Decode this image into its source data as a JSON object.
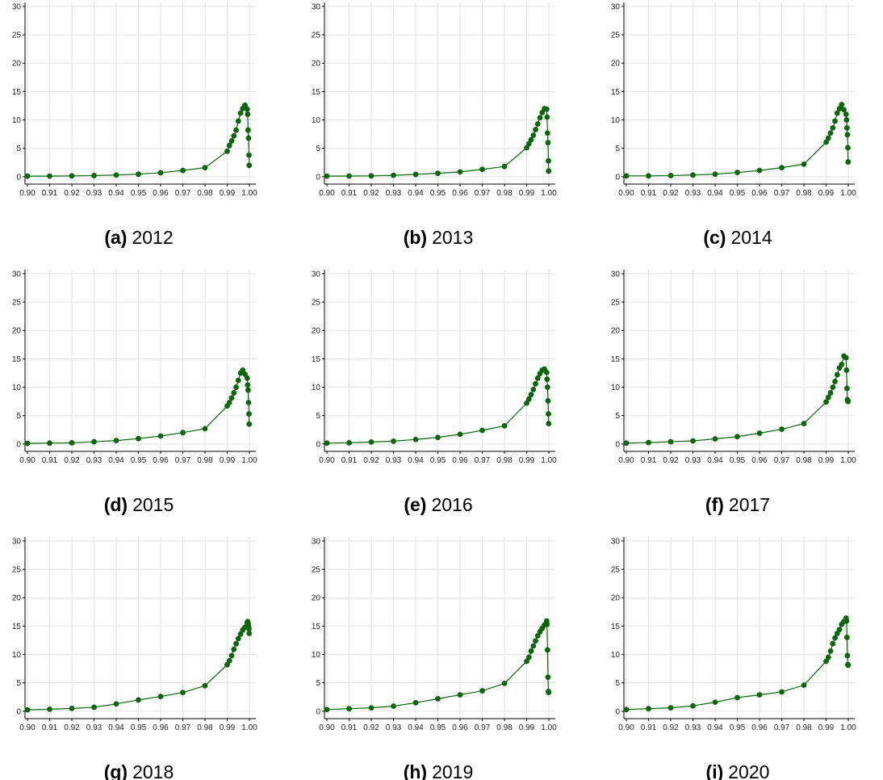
{
  "chart_data": [
    {
      "type": "line",
      "label": "(a)",
      "title": "2012",
      "color": "#0b660b",
      "grid": true,
      "x": [
        0.9,
        0.91,
        0.92,
        0.93,
        0.94,
        0.95,
        0.96,
        0.97,
        0.98,
        0.99,
        0.991,
        0.992,
        0.993,
        0.994,
        0.995,
        0.996,
        0.997,
        0.998,
        0.999,
        0.9992,
        0.9994,
        0.9996,
        0.9998,
        0.9999
      ],
      "values": [
        0.1,
        0.1,
        0.15,
        0.2,
        0.3,
        0.45,
        0.7,
        1.1,
        1.6,
        4.5,
        5.5,
        6.3,
        7.2,
        8.2,
        9.8,
        11.2,
        12.0,
        12.6,
        11.9,
        11.0,
        8.2,
        6.8,
        3.8,
        2.0
      ],
      "xlim": [
        0.8989,
        1.0029
      ],
      "ylim": [
        -1.3,
        30.7
      ],
      "xticks": [
        {
          "value": 0.9,
          "label": "0.90"
        },
        {
          "value": 0.91,
          "label": "0.91"
        },
        {
          "value": 0.92,
          "label": "0.92"
        },
        {
          "value": 0.93,
          "label": "0.93"
        },
        {
          "value": 0.94,
          "label": "0.94"
        },
        {
          "value": 0.95,
          "label": "0.95"
        },
        {
          "value": 0.96,
          "label": "0.96"
        },
        {
          "value": 0.97,
          "label": "0.97"
        },
        {
          "value": 0.98,
          "label": "0.98"
        },
        {
          "value": 0.99,
          "label": "0.99"
        },
        {
          "value": 1.0,
          "label": "1.00"
        }
      ],
      "yticks": [
        0,
        5,
        10,
        15,
        20,
        25,
        30
      ]
    },
    {
      "type": "line",
      "label": "(b)",
      "title": "2013",
      "color": "#0b660b",
      "grid": true,
      "x": [
        0.9,
        0.91,
        0.92,
        0.93,
        0.94,
        0.95,
        0.96,
        0.97,
        0.98,
        0.99,
        0.991,
        0.992,
        0.993,
        0.994,
        0.995,
        0.996,
        0.997,
        0.998,
        0.999,
        0.9992,
        0.9994,
        0.9996,
        0.9998,
        0.9999
      ],
      "values": [
        0.1,
        0.12,
        0.15,
        0.25,
        0.4,
        0.6,
        0.85,
        1.3,
        1.8,
        5.1,
        5.8,
        6.5,
        7.3,
        8.3,
        9.3,
        10.4,
        11.3,
        12.0,
        11.9,
        10.5,
        7.7,
        6.0,
        2.8,
        1.0
      ],
      "xlim": [
        0.8989,
        1.0029
      ],
      "ylim": [
        -1.3,
        30.7
      ],
      "xticks": [
        {
          "value": 0.9,
          "label": "0.90"
        },
        {
          "value": 0.91,
          "label": "0.91"
        },
        {
          "value": 0.92,
          "label": "0.92"
        },
        {
          "value": 0.93,
          "label": "0.93"
        },
        {
          "value": 0.94,
          "label": "0.94"
        },
        {
          "value": 0.95,
          "label": "0.95"
        },
        {
          "value": 0.96,
          "label": "0.96"
        },
        {
          "value": 0.97,
          "label": "0.97"
        },
        {
          "value": 0.98,
          "label": "0.98"
        },
        {
          "value": 0.99,
          "label": "0.99"
        },
        {
          "value": 1.0,
          "label": "1.00"
        }
      ],
      "yticks": [
        0,
        5,
        10,
        15,
        20,
        25,
        30
      ]
    },
    {
      "type": "line",
      "label": "(c)",
      "title": "2014",
      "color": "#0b660b",
      "grid": true,
      "x": [
        0.9,
        0.91,
        0.92,
        0.93,
        0.94,
        0.95,
        0.96,
        0.97,
        0.98,
        0.99,
        0.991,
        0.992,
        0.993,
        0.994,
        0.995,
        0.996,
        0.997,
        0.998,
        0.999,
        0.9992,
        0.9994,
        0.9996,
        0.9998,
        0.9999
      ],
      "values": [
        0.15,
        0.15,
        0.2,
        0.3,
        0.45,
        0.75,
        1.1,
        1.6,
        2.2,
        6.1,
        6.8,
        7.7,
        8.6,
        9.8,
        11.2,
        12.0,
        12.7,
        11.8,
        11.0,
        10.0,
        8.6,
        7.4,
        5.1,
        2.6
      ],
      "xlim": [
        0.8989,
        1.0029
      ],
      "ylim": [
        -1.3,
        30.7
      ],
      "xticks": [
        {
          "value": 0.9,
          "label": "0.90"
        },
        {
          "value": 0.91,
          "label": "0.91"
        },
        {
          "value": 0.92,
          "label": "0.92"
        },
        {
          "value": 0.93,
          "label": "0.93"
        },
        {
          "value": 0.94,
          "label": "0.94"
        },
        {
          "value": 0.95,
          "label": "0.95"
        },
        {
          "value": 0.96,
          "label": "0.96"
        },
        {
          "value": 0.97,
          "label": "0.97"
        },
        {
          "value": 0.98,
          "label": "0.98"
        },
        {
          "value": 0.99,
          "label": "0.99"
        },
        {
          "value": 1.0,
          "label": "1.00"
        }
      ],
      "yticks": [
        0,
        5,
        10,
        15,
        20,
        25,
        30
      ]
    },
    {
      "type": "line",
      "label": "(d)",
      "title": "2015",
      "color": "#0b660b",
      "grid": true,
      "x": [
        0.9,
        0.91,
        0.92,
        0.93,
        0.94,
        0.95,
        0.96,
        0.97,
        0.98,
        0.99,
        0.991,
        0.992,
        0.993,
        0.994,
        0.995,
        0.996,
        0.997,
        0.998,
        0.999,
        0.9992,
        0.9994,
        0.9996,
        0.9998,
        0.9999
      ],
      "values": [
        0.1,
        0.15,
        0.2,
        0.4,
        0.6,
        0.95,
        1.4,
        2.0,
        2.7,
        6.7,
        7.3,
        8.1,
        9.0,
        10.0,
        11.2,
        12.5,
        13.0,
        12.3,
        11.6,
        10.4,
        9.5,
        7.3,
        5.3,
        3.5
      ],
      "xlim": [
        0.8989,
        1.0029
      ],
      "ylim": [
        -1.3,
        30.7
      ],
      "xticks": [
        {
          "value": 0.9,
          "label": "0.90"
        },
        {
          "value": 0.91,
          "label": "0.91"
        },
        {
          "value": 0.92,
          "label": "0.92"
        },
        {
          "value": 0.93,
          "label": "0.93"
        },
        {
          "value": 0.94,
          "label": "0.94"
        },
        {
          "value": 0.95,
          "label": "0.95"
        },
        {
          "value": 0.96,
          "label": "0.96"
        },
        {
          "value": 0.97,
          "label": "0.97"
        },
        {
          "value": 0.98,
          "label": "0.98"
        },
        {
          "value": 0.99,
          "label": "0.99"
        },
        {
          "value": 1.0,
          "label": "1.00"
        }
      ],
      "yticks": [
        0,
        5,
        10,
        15,
        20,
        25,
        30
      ]
    },
    {
      "type": "line",
      "label": "(e)",
      "title": "2016",
      "color": "#0b660b",
      "grid": true,
      "x": [
        0.9,
        0.91,
        0.92,
        0.93,
        0.94,
        0.95,
        0.96,
        0.97,
        0.98,
        0.99,
        0.991,
        0.992,
        0.993,
        0.994,
        0.995,
        0.996,
        0.997,
        0.998,
        0.999,
        0.9992,
        0.9994,
        0.9996,
        0.9998,
        0.9999
      ],
      "values": [
        0.15,
        0.2,
        0.35,
        0.5,
        0.8,
        1.15,
        1.7,
        2.4,
        3.2,
        7.2,
        7.9,
        8.7,
        9.6,
        10.6,
        11.6,
        12.4,
        13.0,
        13.2,
        12.6,
        11.4,
        10.0,
        7.6,
        5.3,
        3.6
      ],
      "xlim": [
        0.8989,
        1.0029
      ],
      "ylim": [
        -1.3,
        30.7
      ],
      "xticks": [
        {
          "value": 0.9,
          "label": "0.90"
        },
        {
          "value": 0.91,
          "label": "0.91"
        },
        {
          "value": 0.92,
          "label": "0.92"
        },
        {
          "value": 0.93,
          "label": "0.93"
        },
        {
          "value": 0.94,
          "label": "0.94"
        },
        {
          "value": 0.95,
          "label": "0.95"
        },
        {
          "value": 0.96,
          "label": "0.96"
        },
        {
          "value": 0.97,
          "label": "0.97"
        },
        {
          "value": 0.98,
          "label": "0.98"
        },
        {
          "value": 0.99,
          "label": "0.99"
        },
        {
          "value": 1.0,
          "label": "1.00"
        }
      ],
      "yticks": [
        0,
        5,
        10,
        15,
        20,
        25,
        30
      ]
    },
    {
      "type": "line",
      "label": "(f)",
      "title": "2017",
      "color": "#0b660b",
      "grid": true,
      "x": [
        0.9,
        0.91,
        0.92,
        0.93,
        0.94,
        0.95,
        0.96,
        0.97,
        0.98,
        0.99,
        0.991,
        0.992,
        0.993,
        0.994,
        0.995,
        0.996,
        0.997,
        0.998,
        0.999,
        0.9992,
        0.9994,
        0.9996,
        0.9998,
        0.9999
      ],
      "values": [
        0.15,
        0.25,
        0.4,
        0.55,
        0.9,
        1.3,
        1.9,
        2.6,
        3.6,
        7.4,
        8.2,
        9.0,
        10.0,
        11.0,
        12.2,
        13.4,
        14.0,
        15.5,
        15.2,
        13.0,
        9.8,
        7.8,
        7.5,
        7.5
      ],
      "xlim": [
        0.8989,
        1.0029
      ],
      "ylim": [
        -1.3,
        30.7
      ],
      "xticks": [
        {
          "value": 0.9,
          "label": "0.90"
        },
        {
          "value": 0.91,
          "label": "0.91"
        },
        {
          "value": 0.92,
          "label": "0.92"
        },
        {
          "value": 0.93,
          "label": "0.93"
        },
        {
          "value": 0.94,
          "label": "0.94"
        },
        {
          "value": 0.95,
          "label": "0.95"
        },
        {
          "value": 0.96,
          "label": "0.96"
        },
        {
          "value": 0.97,
          "label": "0.97"
        },
        {
          "value": 0.98,
          "label": "0.98"
        },
        {
          "value": 0.99,
          "label": "0.99"
        },
        {
          "value": 1.0,
          "label": "1.00"
        }
      ],
      "yticks": [
        0,
        5,
        10,
        15,
        20,
        25,
        30
      ]
    },
    {
      "type": "line",
      "label": "(g)",
      "title": "2018",
      "color": "#0b660b",
      "grid": true,
      "x": [
        0.9,
        0.91,
        0.92,
        0.93,
        0.94,
        0.95,
        0.96,
        0.97,
        0.98,
        0.99,
        0.991,
        0.992,
        0.993,
        0.994,
        0.995,
        0.996,
        0.997,
        0.998,
        0.999,
        0.9992,
        0.9994,
        0.9996,
        0.9998,
        0.9999
      ],
      "values": [
        0.25,
        0.35,
        0.5,
        0.7,
        1.3,
        2.0,
        2.6,
        3.3,
        4.5,
        8.2,
        8.9,
        9.8,
        10.9,
        11.9,
        12.8,
        13.6,
        14.3,
        14.8,
        15.6,
        15.8,
        15.5,
        15.0,
        14.5,
        13.7
      ],
      "xlim": [
        0.8989,
        1.0029
      ],
      "ylim": [
        -1.3,
        30.7
      ],
      "xticks": [
        {
          "value": 0.9,
          "label": "0.90"
        },
        {
          "value": 0.91,
          "label": "0.91"
        },
        {
          "value": 0.92,
          "label": "0.92"
        },
        {
          "value": 0.93,
          "label": "0.93"
        },
        {
          "value": 0.94,
          "label": "0.94"
        },
        {
          "value": 0.95,
          "label": "0.95"
        },
        {
          "value": 0.96,
          "label": "0.96"
        },
        {
          "value": 0.97,
          "label": "0.97"
        },
        {
          "value": 0.98,
          "label": "0.98"
        },
        {
          "value": 0.99,
          "label": "0.99"
        },
        {
          "value": 1.0,
          "label": "1.00"
        }
      ],
      "yticks": [
        0,
        5,
        10,
        15,
        20,
        25,
        30
      ]
    },
    {
      "type": "line",
      "label": "(h)",
      "title": "2019",
      "color": "#0b660b",
      "grid": true,
      "x": [
        0.9,
        0.91,
        0.92,
        0.93,
        0.94,
        0.95,
        0.96,
        0.97,
        0.98,
        0.99,
        0.991,
        0.992,
        0.993,
        0.994,
        0.995,
        0.996,
        0.997,
        0.998,
        0.999,
        0.9992,
        0.9994,
        0.9996,
        0.9998,
        0.9999
      ],
      "values": [
        0.3,
        0.45,
        0.6,
        0.9,
        1.5,
        2.2,
        2.9,
        3.6,
        4.9,
        8.8,
        9.5,
        10.6,
        11.5,
        12.4,
        13.3,
        14.0,
        14.6,
        15.2,
        15.9,
        15.3,
        10.8,
        6.0,
        3.5,
        3.3
      ],
      "xlim": [
        0.8989,
        1.0029
      ],
      "ylim": [
        -1.3,
        30.7
      ],
      "xticks": [
        {
          "value": 0.9,
          "label": "0.90"
        },
        {
          "value": 0.91,
          "label": "0.91"
        },
        {
          "value": 0.92,
          "label": "0.92"
        },
        {
          "value": 0.93,
          "label": "0.93"
        },
        {
          "value": 0.94,
          "label": "0.94"
        },
        {
          "value": 0.95,
          "label": "0.95"
        },
        {
          "value": 0.96,
          "label": "0.96"
        },
        {
          "value": 0.97,
          "label": "0.97"
        },
        {
          "value": 0.98,
          "label": "0.98"
        },
        {
          "value": 0.99,
          "label": "0.99"
        },
        {
          "value": 1.0,
          "label": "1.00"
        }
      ],
      "yticks": [
        0,
        5,
        10,
        15,
        20,
        25,
        30
      ]
    },
    {
      "type": "line",
      "label": "(i)",
      "title": "2020",
      "color": "#0b660b",
      "grid": true,
      "x": [
        0.9,
        0.91,
        0.92,
        0.93,
        0.94,
        0.95,
        0.96,
        0.97,
        0.98,
        0.99,
        0.991,
        0.992,
        0.993,
        0.994,
        0.995,
        0.996,
        0.997,
        0.998,
        0.999,
        0.9992,
        0.9994,
        0.9996,
        0.9998,
        0.9999
      ],
      "values": [
        0.3,
        0.45,
        0.6,
        0.95,
        1.6,
        2.4,
        2.9,
        3.4,
        4.6,
        8.8,
        9.5,
        10.6,
        11.9,
        12.9,
        13.7,
        14.4,
        15.3,
        15.8,
        16.4,
        15.9,
        13.0,
        9.8,
        8.2,
        8.1
      ],
      "xlim": [
        0.8989,
        1.0029
      ],
      "ylim": [
        -1.3,
        30.7
      ],
      "xticks": [
        {
          "value": 0.9,
          "label": "0.90"
        },
        {
          "value": 0.91,
          "label": "0.91"
        },
        {
          "value": 0.92,
          "label": "0.92"
        },
        {
          "value": 0.93,
          "label": "0.93"
        },
        {
          "value": 0.94,
          "label": "0.94"
        },
        {
          "value": 0.95,
          "label": "0.95"
        },
        {
          "value": 0.96,
          "label": "0.96"
        },
        {
          "value": 0.97,
          "label": "0.97"
        },
        {
          "value": 0.98,
          "label": "0.98"
        },
        {
          "value": 0.99,
          "label": "0.99"
        },
        {
          "value": 1.0,
          "label": "1.00"
        }
      ],
      "yticks": [
        0,
        5,
        10,
        15,
        20,
        25,
        30
      ]
    }
  ]
}
